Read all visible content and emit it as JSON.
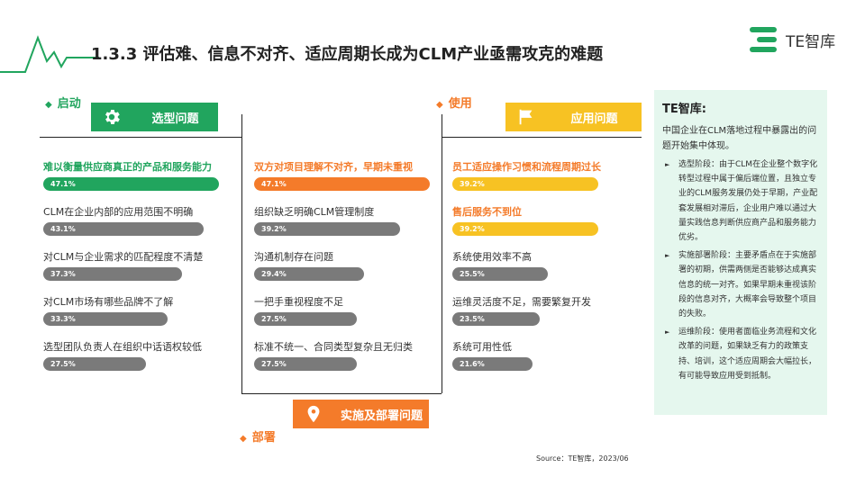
{
  "title": "1.3.3 评估难、信息不对齐、适应周期长成为CLM产业亟需攻克的难题",
  "logo": "TE智库",
  "colors": {
    "green": "#21a55e",
    "orange": "#f47b2a",
    "yellow": "#f7c223",
    "gray": "#7a7a7a"
  },
  "chart_data": {
    "type": "bar",
    "ylim": [
      0,
      50
    ],
    "groups": [
      {
        "stage": "启动",
        "header": "选型问题",
        "icon": "gear-icon",
        "items": [
          {
            "label": "难以衡量供应商真正的产品和服务能力",
            "value": 47.1,
            "display": "47.1%",
            "highlight": true
          },
          {
            "label": "CLM在企业内部的应用范围不明确",
            "value": 43.1,
            "display": "43.1%"
          },
          {
            "label": "对CLM与企业需求的匹配程度不清楚",
            "value": 37.3,
            "display": "37.3%"
          },
          {
            "label": "对CLM市场有哪些品牌不了解",
            "value": 33.3,
            "display": "33.3%"
          },
          {
            "label": "选型团队负责人在组织中话语权较低",
            "value": 27.5,
            "display": "27.5%"
          }
        ]
      },
      {
        "stage": "部署",
        "header": "实施及部署问题",
        "icon": "location-pin-icon",
        "items": [
          {
            "label": "双方对项目理解不对齐，早期未重视",
            "value": 47.1,
            "display": "47.1%",
            "highlight": true
          },
          {
            "label": "组织缺乏明确CLM管理制度",
            "value": 39.2,
            "display": "39.2%"
          },
          {
            "label": "沟通机制存在问题",
            "value": 29.4,
            "display": "29.4%"
          },
          {
            "label": "一把手重视程度不足",
            "value": 27.5,
            "display": "27.5%"
          },
          {
            "label": "标准不统一、合同类型复杂且无归类",
            "value": 27.5,
            "display": "27.5%"
          }
        ]
      },
      {
        "stage": "使用",
        "header": "应用问题",
        "icon": "flag-icon",
        "items": [
          {
            "label": "员工适应操作习惯和流程周期过长",
            "value": 39.2,
            "display": "39.2%",
            "highlight": true
          },
          {
            "label": "售后服务不到位",
            "value": 39.2,
            "display": "39.2%",
            "highlight": true
          },
          {
            "label": "系统使用效率不高",
            "value": 25.5,
            "display": "25.5%"
          },
          {
            "label": "运维灵活度不足，需要繁复开发",
            "value": 23.5,
            "display": "23.5%"
          },
          {
            "label": "系统可用性低",
            "value": 21.6,
            "display": "21.6%"
          }
        ]
      }
    ]
  },
  "panel": {
    "title": "TE智库:",
    "intro": "中国企业在CLM落地过程中暴露出的问题开始集中体现。",
    "points": [
      "选型阶段：由于CLM在企业整个数字化转型过程中属于偏后端位置，且独立专业的CLM服务发展仍处于早期，产业配套发展相对滞后，企业用户难以通过大量实践信息判断供应商产品和服务能力优劣。",
      "实施部署阶段：主要矛盾点在于实施部署的初期，供需两侧是否能够达成真实信息的统一对齐。如果早期未重视该阶段的信息对齐，大概率会导致整个项目的失败。",
      "运维阶段：使用者面临业务流程和文化改革的问题，如果缺乏有力的政策支持、培训，这个适应周期会大幅拉长，有可能导致应用受到抵制。"
    ]
  },
  "source": "Source：TE智库，2023/06"
}
